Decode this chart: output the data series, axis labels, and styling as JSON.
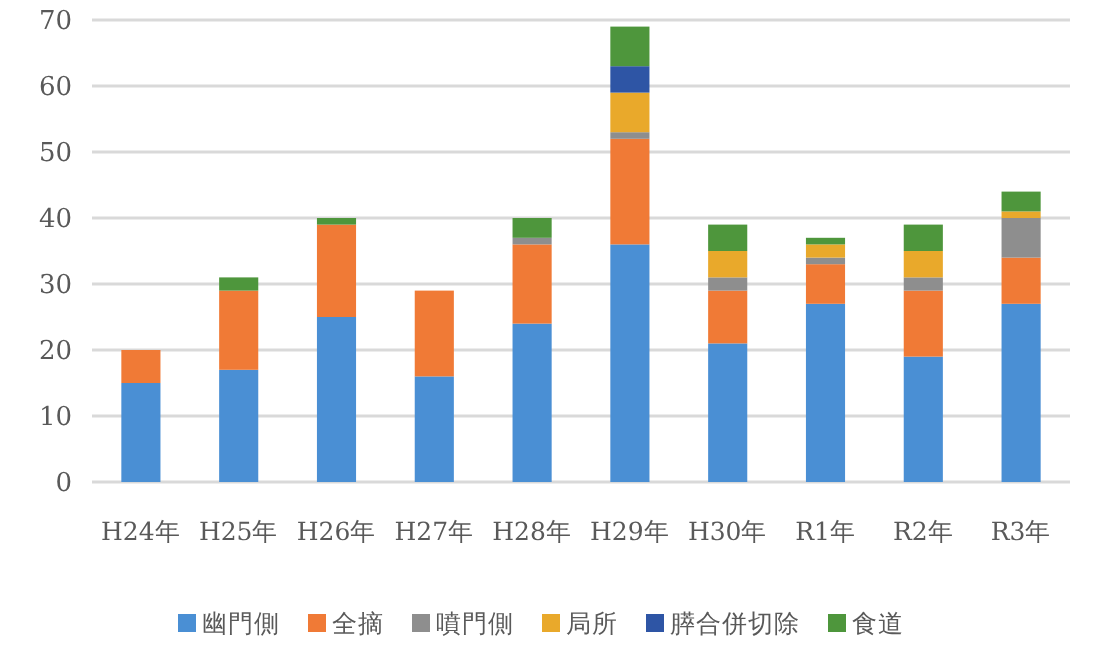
{
  "chart_data": {
    "type": "bar",
    "stacked": true,
    "categories": [
      "H24年",
      "H25年",
      "H26年",
      "H27年",
      "H28年",
      "H29年",
      "H30年",
      "R1年",
      "R2年",
      "R3年"
    ],
    "series": [
      {
        "name": "幽門側",
        "color": "#4a8fd4",
        "values": [
          15,
          17,
          25,
          16,
          24,
          36,
          21,
          27,
          19,
          27
        ]
      },
      {
        "name": "全摘",
        "color": "#f07a36",
        "values": [
          5,
          12,
          14,
          13,
          12,
          16,
          8,
          6,
          10,
          7
        ]
      },
      {
        "name": "噴門側",
        "color": "#8e8e8e",
        "values": [
          0,
          0,
          0,
          0,
          1,
          1,
          2,
          1,
          2,
          6
        ]
      },
      {
        "name": "局所",
        "color": "#e9a92b",
        "values": [
          0,
          0,
          0,
          0,
          0,
          6,
          4,
          2,
          4,
          1
        ]
      },
      {
        "name": "膵合併切除",
        "color": "#2e55a5",
        "values": [
          0,
          0,
          0,
          0,
          0,
          4,
          0,
          0,
          0,
          0
        ]
      },
      {
        "name": "食道",
        "color": "#4e963c",
        "values": [
          0,
          2,
          1,
          0,
          3,
          6,
          4,
          1,
          4,
          3
        ]
      }
    ],
    "ylim": [
      0,
      70
    ],
    "yticks": [
      0,
      10,
      20,
      30,
      40,
      50,
      60,
      70
    ],
    "grid": "y",
    "legend": "bottom"
  }
}
